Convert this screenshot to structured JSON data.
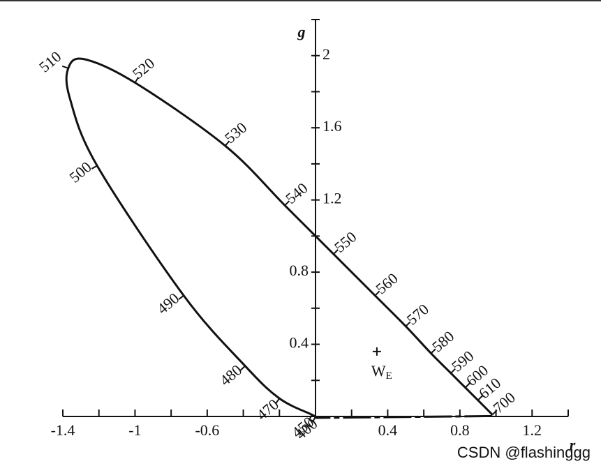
{
  "chart_data": {
    "type": "line",
    "x_label": "r",
    "y_label": "g",
    "xlim": [
      -1.4,
      1.4
    ],
    "ylim": [
      0,
      2.2
    ],
    "xticks": [
      -1.4,
      -1.0,
      -0.6,
      0.4,
      0.8,
      1.2
    ],
    "x_minor_ticks": [
      -1.2,
      -0.8,
      -0.4,
      -0.2,
      0,
      0.2,
      0.6,
      1.0,
      1.4
    ],
    "yticks": [
      0.4,
      0.8,
      1.2,
      1.6,
      2.0
    ],
    "y_minor_ticks": [
      0.2,
      0.6,
      1.0,
      1.4,
      1.8,
      2.2
    ],
    "closed": true,
    "series": [
      {
        "color": "#111111",
        "labels": [
          "400",
          "450",
          "470",
          "480",
          "490",
          "500",
          null,
          "510",
          null,
          "520",
          "530",
          "540",
          "550",
          "560",
          "570",
          "580",
          "590",
          "600",
          "610",
          "700"
        ],
        "x": [
          0,
          -0.02,
          -0.2,
          -0.39,
          -0.73,
          -1.21,
          -1.36,
          -1.37,
          -1.28,
          -1.0,
          -0.5,
          -0.17,
          0.1,
          0.33,
          0.5,
          0.64,
          0.75,
          0.83,
          0.9,
          0.98
        ],
        "values": [
          0,
          0.01,
          0.1,
          0.28,
          0.67,
          1.39,
          1.76,
          1.93,
          1.98,
          1.85,
          1.5,
          1.17,
          0.9,
          0.67,
          0.5,
          0.35,
          0.24,
          0.16,
          0.09,
          0.01
        ]
      }
    ],
    "white_point": {
      "label": "W",
      "subscript": "E",
      "x": 0.34,
      "y": 0.36
    },
    "watermark": "CSDN @flashinggg"
  }
}
